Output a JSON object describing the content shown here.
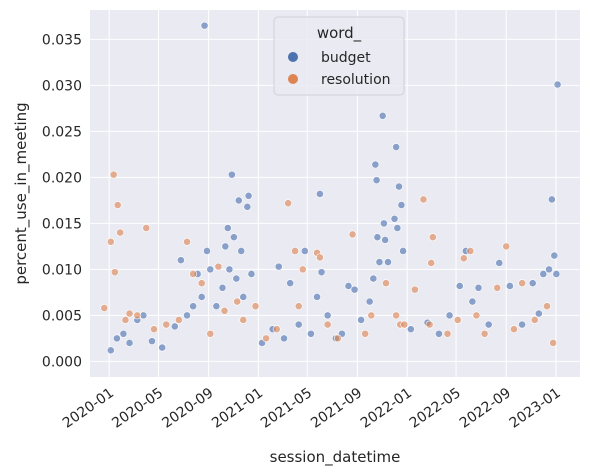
{
  "chart_data": {
    "type": "scatter",
    "xlabel": "session_datetime",
    "ylabel": "percent_use_in_meeting",
    "xlim": [
      "2019-11-15",
      "2023-03-01"
    ],
    "ylim": [
      -0.0017,
      0.0382
    ],
    "x_ticks": [
      "2020-01",
      "2020-05",
      "2020-09",
      "2021-01",
      "2021-05",
      "2021-09",
      "2022-01",
      "2022-05",
      "2022-09",
      "2023-01"
    ],
    "y_ticks": [
      "0.000",
      "0.005",
      "0.010",
      "0.015",
      "0.020",
      "0.025",
      "0.030",
      "0.035"
    ],
    "grid": true,
    "legend": {
      "title": "word_",
      "placement": "top-center",
      "entries": [
        "budget",
        "resolution"
      ]
    },
    "colors": {
      "budget": "#4c72b0",
      "resolution": "#dd8452",
      "background": "#eaeaf2",
      "grid": "#ffffff"
    },
    "series": [
      {
        "name": "budget",
        "points": [
          [
            "2020-01-05",
            0.0012
          ],
          [
            "2020-01-20",
            0.0025
          ],
          [
            "2020-02-05",
            0.003
          ],
          [
            "2020-02-20",
            0.002
          ],
          [
            "2020-03-10",
            0.0045
          ],
          [
            "2020-03-25",
            0.005
          ],
          [
            "2020-04-15",
            0.0022
          ],
          [
            "2020-05-10",
            0.0015
          ],
          [
            "2020-06-10",
            0.0038
          ],
          [
            "2020-06-25",
            0.011
          ],
          [
            "2020-07-10",
            0.005
          ],
          [
            "2020-07-25",
            0.006
          ],
          [
            "2020-08-05",
            0.0095
          ],
          [
            "2020-08-15",
            0.007
          ],
          [
            "2020-08-22",
            0.0365
          ],
          [
            "2020-08-28",
            0.012
          ],
          [
            "2020-09-05",
            0.01
          ],
          [
            "2020-09-20",
            0.006
          ],
          [
            "2020-10-05",
            0.008
          ],
          [
            "2020-10-12",
            0.0125
          ],
          [
            "2020-10-18",
            0.0145
          ],
          [
            "2020-10-22",
            0.01
          ],
          [
            "2020-10-28",
            0.0203
          ],
          [
            "2020-11-02",
            0.0135
          ],
          [
            "2020-11-08",
            0.009
          ],
          [
            "2020-11-14",
            0.0175
          ],
          [
            "2020-11-20",
            0.012
          ],
          [
            "2020-11-25",
            0.007
          ],
          [
            "2020-12-05",
            0.0168
          ],
          [
            "2020-12-08",
            0.018
          ],
          [
            "2020-12-15",
            0.0095
          ],
          [
            "2021-01-10",
            0.002
          ],
          [
            "2021-02-05",
            0.0035
          ],
          [
            "2021-02-20",
            0.0103
          ],
          [
            "2021-03-05",
            0.0025
          ],
          [
            "2021-03-20",
            0.0085
          ],
          [
            "2021-04-10",
            0.004
          ],
          [
            "2021-04-25",
            0.012
          ],
          [
            "2021-05-10",
            0.003
          ],
          [
            "2021-05-25",
            0.007
          ],
          [
            "2021-06-01",
            0.0182
          ],
          [
            "2021-06-05",
            0.0097
          ],
          [
            "2021-06-20",
            0.005
          ],
          [
            "2021-07-10",
            0.0025
          ],
          [
            "2021-07-25",
            0.003
          ],
          [
            "2021-08-10",
            0.0082
          ],
          [
            "2021-08-25",
            0.0078
          ],
          [
            "2021-09-10",
            0.0045
          ],
          [
            "2021-10-01",
            0.0065
          ],
          [
            "2021-10-10",
            0.009
          ],
          [
            "2021-10-15",
            0.0214
          ],
          [
            "2021-10-18",
            0.0197
          ],
          [
            "2021-10-20",
            0.0135
          ],
          [
            "2021-10-25",
            0.0108
          ],
          [
            "2021-11-02",
            0.0267
          ],
          [
            "2021-11-05",
            0.015
          ],
          [
            "2021-11-08",
            0.0132
          ],
          [
            "2021-11-15",
            0.0108
          ],
          [
            "2021-12-01",
            0.0155
          ],
          [
            "2021-12-05",
            0.0233
          ],
          [
            "2021-12-08",
            0.0145
          ],
          [
            "2021-12-12",
            0.019
          ],
          [
            "2021-12-18",
            0.017
          ],
          [
            "2021-12-22",
            0.012
          ],
          [
            "2022-01-10",
            0.0035
          ],
          [
            "2022-02-20",
            0.0042
          ],
          [
            "2022-03-20",
            0.003
          ],
          [
            "2022-04-15",
            0.005
          ],
          [
            "2022-05-10",
            0.0082
          ],
          [
            "2022-05-25",
            0.012
          ],
          [
            "2022-06-10",
            0.0065
          ],
          [
            "2022-06-25",
            0.008
          ],
          [
            "2022-07-20",
            0.004
          ],
          [
            "2022-08-15",
            0.0107
          ],
          [
            "2022-09-10",
            0.0082
          ],
          [
            "2022-10-10",
            0.004
          ],
          [
            "2022-11-05",
            0.0085
          ],
          [
            "2022-11-20",
            0.0052
          ],
          [
            "2022-12-01",
            0.0095
          ],
          [
            "2022-12-15",
            0.01
          ],
          [
            "2022-12-22",
            0.0176
          ],
          [
            "2022-12-28",
            0.0115
          ],
          [
            "2023-01-05",
            0.0301
          ],
          [
            "2023-01-02",
            0.0095
          ]
        ]
      },
      {
        "name": "resolution",
        "points": [
          [
            "2019-12-20",
            0.0058
          ],
          [
            "2020-01-05",
            0.013
          ],
          [
            "2020-01-12",
            0.0203
          ],
          [
            "2020-01-15",
            0.0097
          ],
          [
            "2020-01-22",
            0.017
          ],
          [
            "2020-01-28",
            0.014
          ],
          [
            "2020-02-10",
            0.0045
          ],
          [
            "2020-02-20",
            0.0052
          ],
          [
            "2020-03-10",
            0.005
          ],
          [
            "2020-04-01",
            0.0145
          ],
          [
            "2020-04-20",
            0.0035
          ],
          [
            "2020-05-20",
            0.004
          ],
          [
            "2020-06-20",
            0.0045
          ],
          [
            "2020-07-10",
            0.013
          ],
          [
            "2020-07-25",
            0.0095
          ],
          [
            "2020-08-15",
            0.0085
          ],
          [
            "2020-09-05",
            0.003
          ],
          [
            "2020-09-25",
            0.0103
          ],
          [
            "2020-10-10",
            0.0055
          ],
          [
            "2020-11-10",
            0.0065
          ],
          [
            "2020-11-25",
            0.0045
          ],
          [
            "2020-12-25",
            0.006
          ],
          [
            "2021-01-20",
            0.0025
          ],
          [
            "2021-02-15",
            0.0035
          ],
          [
            "2021-03-15",
            0.0172
          ],
          [
            "2021-04-01",
            0.012
          ],
          [
            "2021-04-10",
            0.006
          ],
          [
            "2021-04-20",
            0.01
          ],
          [
            "2021-05-25",
            0.0118
          ],
          [
            "2021-06-01",
            0.0113
          ],
          [
            "2021-06-20",
            0.004
          ],
          [
            "2021-07-15",
            0.0025
          ],
          [
            "2021-08-20",
            0.0138
          ],
          [
            "2021-09-20",
            0.003
          ],
          [
            "2021-10-05",
            0.005
          ],
          [
            "2021-11-10",
            0.0085
          ],
          [
            "2021-12-05",
            0.005
          ],
          [
            "2021-12-15",
            0.004
          ],
          [
            "2021-12-25",
            0.004
          ],
          [
            "2022-01-20",
            0.0078
          ],
          [
            "2022-02-10",
            0.0176
          ],
          [
            "2022-02-25",
            0.004
          ],
          [
            "2022-03-05",
            0.0135
          ],
          [
            "2022-03-01",
            0.0107
          ],
          [
            "2022-04-10",
            0.003
          ],
          [
            "2022-05-05",
            0.0045
          ],
          [
            "2022-05-20",
            0.0112
          ],
          [
            "2022-06-05",
            0.012
          ],
          [
            "2022-06-20",
            0.005
          ],
          [
            "2022-07-10",
            0.003
          ],
          [
            "2022-08-10",
            0.008
          ],
          [
            "2022-09-01",
            0.0125
          ],
          [
            "2022-09-20",
            0.0035
          ],
          [
            "2022-10-10",
            0.0085
          ],
          [
            "2022-11-10",
            0.0045
          ],
          [
            "2022-12-10",
            0.006
          ],
          [
            "2022-12-25",
            0.002
          ]
        ]
      }
    ]
  }
}
